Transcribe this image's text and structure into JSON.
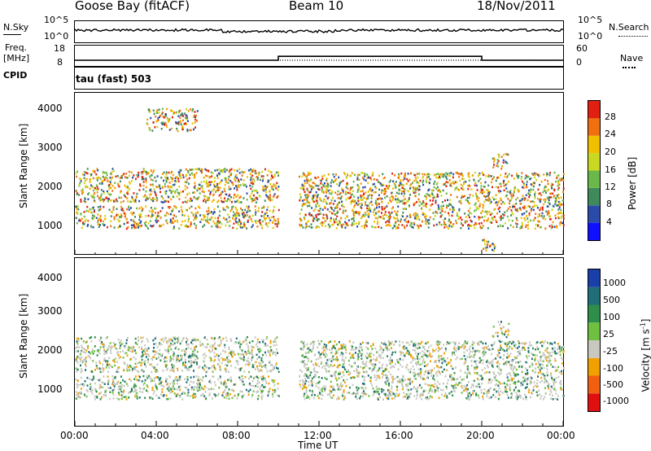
{
  "header": {
    "station": "Goose Bay (fitACF)",
    "beam": "Beam 10",
    "date": "18/Nov/2011"
  },
  "nsky_panel": {
    "left_label": "N.Sky",
    "right_label": "N.Search",
    "left_ticks": [
      "10^5",
      "10^0"
    ],
    "right_ticks": [
      "10^5",
      "10^0"
    ]
  },
  "freq_panel": {
    "left_label_1": "Freq.",
    "left_label_2": "[MHz]",
    "right_label": "Nave",
    "left_ticks": [
      "18",
      "8"
    ],
    "right_ticks": [
      "60",
      "0"
    ]
  },
  "cpid": {
    "label": "CPID",
    "text": "tau (fast) 503"
  },
  "chart_data": [
    {
      "type": "heatmap",
      "panel": "power",
      "ylabel": "Slant Range [km]",
      "y_ticks": [
        "1000",
        "2000",
        "3000",
        "4000"
      ],
      "ylim": [
        200,
        4500
      ],
      "colorbar_label": "Power [dB]",
      "colorbar_ticks": [
        "4",
        "8",
        "12",
        "16",
        "20",
        "24",
        "28"
      ],
      "colorbar_colors": [
        "#1010ff",
        "#2a4ca8",
        "#3f8a5c",
        "#6ab84a",
        "#c8d823",
        "#f0c000",
        "#f07010",
        "#e02010"
      ],
      "bands": [
        {
          "start_hr": 0,
          "end_hr": 10,
          "lo_km": 900,
          "hi_km": 1500
        },
        {
          "start_hr": 0,
          "end_hr": 10,
          "lo_km": 1600,
          "hi_km": 2500
        },
        {
          "start_hr": 3.5,
          "end_hr": 6,
          "lo_km": 3500,
          "hi_km": 4100
        },
        {
          "start_hr": 11,
          "end_hr": 24,
          "lo_km": 900,
          "hi_km": 2400
        },
        {
          "start_hr": 20,
          "end_hr": 20.7,
          "lo_km": 300,
          "hi_km": 700
        },
        {
          "start_hr": 20.5,
          "end_hr": 21.3,
          "lo_km": 2500,
          "hi_km": 2900
        }
      ]
    },
    {
      "type": "heatmap",
      "panel": "velocity",
      "xlabel": "Time UT",
      "ylabel": "Slant Range [km]",
      "x_ticks": [
        "00:00",
        "04:00",
        "08:00",
        "12:00",
        "16:00",
        "20:00",
        "00:00"
      ],
      "y_ticks": [
        "1000",
        "2000",
        "3000",
        "4000"
      ],
      "ylim": [
        200,
        4500
      ],
      "colorbar_label": "Velocity [m s",
      "colorbar_label_sup": "-1",
      "colorbar_label_end": "]",
      "colorbar_ticks": [
        "1000",
        "500",
        "100",
        "25",
        "-25",
        "-100",
        "-500",
        "-1000"
      ],
      "colorbar_colors": [
        "#1a3fa8",
        "#1f6e78",
        "#2d8f4a",
        "#6fc040",
        "#c8c8c0",
        "#f0a000",
        "#f06010",
        "#e01010"
      ],
      "bands": [
        {
          "start_hr": 0,
          "end_hr": 10,
          "lo_km": 900,
          "hi_km": 1500
        },
        {
          "start_hr": 0,
          "end_hr": 10,
          "lo_km": 1600,
          "hi_km": 2500
        },
        {
          "start_hr": 11,
          "end_hr": 24,
          "lo_km": 900,
          "hi_km": 2400
        },
        {
          "start_hr": 20.5,
          "end_hr": 21.3,
          "lo_km": 2500,
          "hi_km": 2900
        }
      ]
    }
  ],
  "line_data": {
    "freq_low_mhz": 10.5,
    "freq_high_mhz": 12.5,
    "freq_high_start_hr": 10,
    "freq_high_end_hr": 20
  }
}
